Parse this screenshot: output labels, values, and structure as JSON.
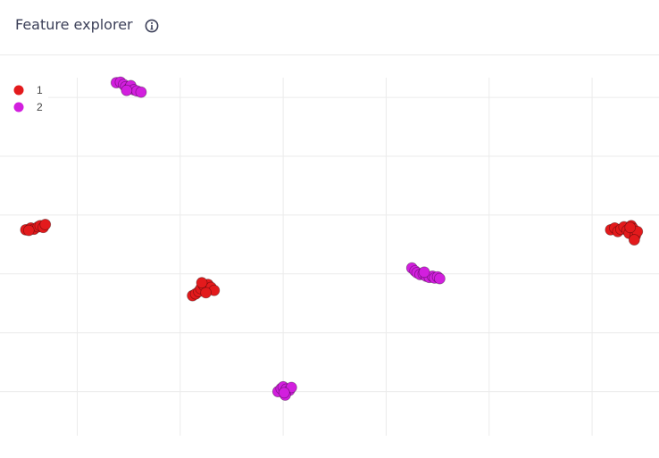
{
  "header": {
    "title": "Feature explorer",
    "info_icon": "info-circle-icon"
  },
  "colors": {
    "series_1": "#e31a1c",
    "series_2": "#d21fde",
    "grid": "#ebebeb",
    "title": "#3b3f58"
  },
  "chart_data": {
    "type": "scatter",
    "title": "",
    "xlabel": "",
    "ylabel": "",
    "xlim": [
      -0.75,
      5.65
    ],
    "ylim": [
      -0.75,
      5.7
    ],
    "grid": true,
    "legend_position": "top-left",
    "series": [
      {
        "name": "1",
        "color": "#e31a1c",
        "points": [
          [
            -0.5,
            2.75
          ],
          [
            -0.45,
            2.78
          ],
          [
            -0.42,
            2.76
          ],
          [
            -0.38,
            2.8
          ],
          [
            -0.36,
            2.82
          ],
          [
            -0.33,
            2.79
          ],
          [
            -0.31,
            2.84
          ],
          [
            -0.47,
            2.74
          ],
          [
            1.12,
            1.63
          ],
          [
            1.15,
            1.66
          ],
          [
            1.18,
            1.7
          ],
          [
            1.2,
            1.75
          ],
          [
            1.23,
            1.8
          ],
          [
            1.27,
            1.82
          ],
          [
            1.3,
            1.77
          ],
          [
            1.33,
            1.72
          ],
          [
            1.25,
            1.68
          ],
          [
            1.21,
            1.85
          ],
          [
            5.18,
            2.75
          ],
          [
            5.22,
            2.78
          ],
          [
            5.25,
            2.72
          ],
          [
            5.28,
            2.76
          ],
          [
            5.31,
            2.8
          ],
          [
            5.34,
            2.74
          ],
          [
            5.36,
            2.69
          ],
          [
            5.38,
            2.82
          ],
          [
            5.4,
            2.77
          ],
          [
            5.42,
            2.65
          ],
          [
            5.44,
            2.72
          ],
          [
            5.41,
            2.58
          ],
          [
            5.37,
            2.79
          ]
        ]
      },
      {
        "name": "2",
        "color": "#d21fde",
        "points": [
          [
            0.38,
            5.25
          ],
          [
            0.42,
            5.26
          ],
          [
            0.45,
            5.22
          ],
          [
            0.47,
            5.18
          ],
          [
            0.5,
            5.15
          ],
          [
            0.52,
            5.2
          ],
          [
            0.55,
            5.13
          ],
          [
            0.58,
            5.11
          ],
          [
            0.62,
            5.09
          ],
          [
            0.48,
            5.12
          ],
          [
            1.95,
            0.0
          ],
          [
            1.98,
            0.05
          ],
          [
            2.0,
            0.08
          ],
          [
            2.03,
            0.04
          ],
          [
            2.06,
            0.02
          ],
          [
            2.08,
            0.07
          ],
          [
            2.02,
            -0.06
          ],
          [
            2.01,
            -0.02
          ],
          [
            3.25,
            2.1
          ],
          [
            3.28,
            2.05
          ],
          [
            3.3,
            2.02
          ],
          [
            3.33,
            1.99
          ],
          [
            3.36,
            2.0
          ],
          [
            3.39,
            1.96
          ],
          [
            3.42,
            1.94
          ],
          [
            3.45,
            1.96
          ],
          [
            3.47,
            1.93
          ],
          [
            3.5,
            1.95
          ],
          [
            3.52,
            1.92
          ],
          [
            3.37,
            2.03
          ]
        ]
      }
    ]
  }
}
